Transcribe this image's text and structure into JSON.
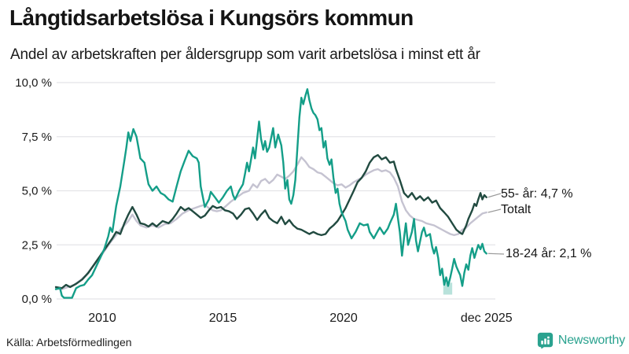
{
  "header": {
    "title": "Långtidsarbetslösa i Kungsörs kommun",
    "subtitle": "Andel av arbetskraften per åldersgrupp som varit arbetslösa i minst ett år"
  },
  "chart_data": {
    "type": "line",
    "title": "Långtidsarbetslösa i Kungsörs kommun",
    "subtitle": "Andel av arbetskraften per åldersgrupp som varit arbetslösa i minst ett år",
    "xlabel": "",
    "ylabel": "",
    "ylim": [
      0,
      10
    ],
    "xrange": [
      2008.08,
      2025.92
    ],
    "grid": true,
    "legend_position": "right-end-labels",
    "yticks": [
      {
        "label": "10,0 %",
        "value": 10
      },
      {
        "label": "7,5 %",
        "value": 7.5
      },
      {
        "label": "5,0 %",
        "value": 5
      },
      {
        "label": "2,5 %",
        "value": 2.5
      },
      {
        "label": "0,0 %",
        "value": 0
      }
    ],
    "xticks": [
      {
        "label": "2010",
        "year": 2010
      },
      {
        "label": "2015",
        "year": 2015
      },
      {
        "label": "2020",
        "year": 2020
      },
      {
        "label": "dec 2025",
        "year": 2025.92
      }
    ],
    "series": [
      {
        "name": "55- år",
        "end_label": "55- år: 4,7 %",
        "end_value": 4.7,
        "color": "#214a40",
        "x": [
          2008.08,
          2008.33,
          2008.5,
          2008.67,
          2008.92,
          2009.17,
          2009.42,
          2009.67,
          2009.92,
          2010.17,
          2010.42,
          2010.58,
          2010.75,
          2010.92,
          2011.08,
          2011.25,
          2011.42,
          2011.58,
          2011.75,
          2011.92,
          2012.08,
          2012.25,
          2012.5,
          2012.75,
          2012.92,
          2013.08,
          2013.25,
          2013.42,
          2013.58,
          2013.75,
          2013.92,
          2014.08,
          2014.25,
          2014.42,
          2014.58,
          2014.75,
          2014.92,
          2015.08,
          2015.25,
          2015.42,
          2015.58,
          2015.75,
          2015.92,
          2016.08,
          2016.25,
          2016.42,
          2016.58,
          2016.75,
          2016.92,
          2017.08,
          2017.25,
          2017.42,
          2017.58,
          2017.75,
          2017.92,
          2018.08,
          2018.25,
          2018.42,
          2018.58,
          2018.75,
          2018.92,
          2019.08,
          2019.25,
          2019.42,
          2019.58,
          2019.75,
          2019.92,
          2020.08,
          2020.25,
          2020.42,
          2020.58,
          2020.75,
          2020.92,
          2021.08,
          2021.25,
          2021.42,
          2021.58,
          2021.75,
          2021.92,
          2022.08,
          2022.17,
          2022.33,
          2022.5,
          2022.67,
          2022.83,
          2023.0,
          2023.17,
          2023.33,
          2023.5,
          2023.67,
          2023.83,
          2024.0,
          2024.17,
          2024.33,
          2024.5,
          2024.67,
          2024.83,
          2024.92,
          2025.08,
          2025.17,
          2025.33,
          2025.42,
          2025.5,
          2025.58,
          2025.67,
          2025.75,
          2025.83,
          2025.92
        ],
        "values": [
          0.55,
          0.5,
          0.65,
          0.55,
          0.7,
          0.9,
          1.2,
          1.6,
          2.0,
          2.4,
          2.8,
          3.1,
          3.0,
          3.5,
          3.9,
          4.25,
          3.9,
          3.5,
          3.45,
          3.35,
          3.5,
          3.35,
          3.6,
          3.5,
          3.7,
          3.95,
          4.25,
          4.1,
          4.2,
          4.05,
          3.9,
          3.75,
          3.85,
          4.1,
          4.3,
          4.2,
          4.25,
          4.1,
          4.05,
          3.95,
          3.7,
          3.9,
          4.15,
          4.2,
          3.95,
          3.65,
          3.9,
          4.1,
          3.75,
          3.6,
          3.5,
          3.8,
          3.45,
          3.65,
          3.4,
          3.25,
          3.2,
          3.1,
          3.0,
          3.1,
          3.0,
          2.95,
          3.0,
          3.25,
          3.4,
          3.6,
          3.9,
          4.2,
          4.6,
          5.0,
          5.4,
          5.6,
          5.9,
          6.3,
          6.55,
          6.65,
          6.45,
          6.55,
          6.3,
          6.35,
          6.0,
          5.5,
          4.9,
          4.7,
          4.9,
          4.6,
          4.75,
          4.55,
          4.7,
          4.45,
          4.55,
          4.2,
          4.0,
          3.8,
          3.5,
          3.2,
          3.05,
          3.0,
          3.4,
          3.7,
          4.1,
          4.4,
          4.3,
          4.6,
          4.9,
          4.6,
          4.8,
          4.7
        ]
      },
      {
        "name": "Totalt",
        "end_label": "Totalt",
        "end_value": 4.0,
        "color": "#c5c3d1",
        "x": [
          2008.08,
          2008.33,
          2008.58,
          2008.83,
          2009.08,
          2009.33,
          2009.58,
          2009.83,
          2010.08,
          2010.33,
          2010.58,
          2010.83,
          2011.08,
          2011.25,
          2011.42,
          2011.58,
          2011.83,
          2012.08,
          2012.33,
          2012.58,
          2012.83,
          2013.08,
          2013.33,
          2013.58,
          2013.83,
          2014.08,
          2014.25,
          2014.42,
          2014.58,
          2014.75,
          2014.92,
          2015.08,
          2015.33,
          2015.58,
          2015.83,
          2016.08,
          2016.25,
          2016.42,
          2016.58,
          2016.75,
          2016.92,
          2017.08,
          2017.25,
          2017.42,
          2017.58,
          2017.75,
          2017.92,
          2018.08,
          2018.25,
          2018.42,
          2018.58,
          2018.75,
          2018.92,
          2019.08,
          2019.25,
          2019.42,
          2019.58,
          2019.75,
          2019.92,
          2020.08,
          2020.25,
          2020.42,
          2020.58,
          2020.75,
          2020.92,
          2021.08,
          2021.25,
          2021.42,
          2021.58,
          2021.75,
          2021.92,
          2022.08,
          2022.25,
          2022.42,
          2022.58,
          2022.75,
          2022.92,
          2023.08,
          2023.25,
          2023.42,
          2023.58,
          2023.75,
          2023.92,
          2024.08,
          2024.25,
          2024.42,
          2024.58,
          2024.75,
          2024.92,
          2025.08,
          2025.25,
          2025.42,
          2025.58,
          2025.75,
          2025.92
        ],
        "values": [
          0.5,
          0.45,
          0.55,
          0.65,
          0.85,
          1.1,
          1.45,
          1.8,
          2.2,
          2.6,
          2.95,
          3.3,
          3.6,
          3.9,
          3.6,
          3.4,
          3.3,
          3.4,
          3.3,
          3.45,
          3.5,
          3.7,
          3.95,
          4.1,
          4.2,
          4.3,
          4.35,
          4.2,
          4.1,
          4.05,
          4.1,
          4.25,
          4.5,
          4.7,
          4.9,
          5.0,
          5.3,
          5.15,
          5.45,
          5.55,
          5.35,
          5.5,
          5.75,
          5.65,
          5.55,
          5.7,
          5.9,
          6.2,
          6.55,
          6.35,
          6.1,
          6.0,
          5.85,
          5.8,
          5.65,
          5.5,
          5.35,
          5.25,
          5.3,
          5.15,
          5.25,
          5.4,
          5.5,
          5.6,
          5.75,
          5.85,
          5.95,
          6.0,
          5.9,
          5.95,
          5.85,
          5.6,
          5.2,
          4.5,
          4.1,
          3.85,
          3.7,
          3.65,
          3.6,
          3.5,
          3.45,
          3.4,
          3.3,
          3.2,
          3.1,
          3.0,
          2.95,
          3.0,
          3.2,
          3.3,
          3.5,
          3.65,
          3.8,
          3.95,
          4.0
        ]
      },
      {
        "name": "18-24 år",
        "end_label": "18-24 år: 2,1 %",
        "end_value": 2.1,
        "color": "#149e88",
        "x": [
          2008.08,
          2008.25,
          2008.33,
          2008.42,
          2008.58,
          2008.75,
          2008.92,
          2009.08,
          2009.25,
          2009.42,
          2009.58,
          2009.75,
          2009.92,
          2010.08,
          2010.25,
          2010.33,
          2010.42,
          2010.58,
          2010.75,
          2010.92,
          2011.0,
          2011.08,
          2011.17,
          2011.29,
          2011.42,
          2011.5,
          2011.58,
          2011.75,
          2011.83,
          2011.92,
          2012.08,
          2012.25,
          2012.42,
          2012.58,
          2012.75,
          2012.92,
          2013.08,
          2013.25,
          2013.42,
          2013.58,
          2013.75,
          2013.92,
          2014.0,
          2014.08,
          2014.25,
          2014.42,
          2014.5,
          2014.67,
          2014.83,
          2015.0,
          2015.17,
          2015.33,
          2015.42,
          2015.5,
          2015.67,
          2015.83,
          2015.92,
          2016.0,
          2016.08,
          2016.25,
          2016.33,
          2016.42,
          2016.5,
          2016.58,
          2016.67,
          2016.75,
          2016.83,
          2016.92,
          2017.08,
          2017.17,
          2017.29,
          2017.42,
          2017.5,
          2017.58,
          2017.67,
          2017.75,
          2017.83,
          2017.92,
          2018.0,
          2018.08,
          2018.17,
          2018.25,
          2018.33,
          2018.42,
          2018.5,
          2018.58,
          2018.67,
          2018.75,
          2018.83,
          2018.92,
          2019.0,
          2019.08,
          2019.17,
          2019.25,
          2019.33,
          2019.42,
          2019.5,
          2019.58,
          2019.67,
          2019.75,
          2019.83,
          2019.92,
          2020.08,
          2020.17,
          2020.33,
          2020.5,
          2020.67,
          2020.83,
          2021.0,
          2021.08,
          2021.25,
          2021.42,
          2021.5,
          2021.67,
          2021.83,
          2021.92,
          2022.08,
          2022.17,
          2022.33,
          2022.42,
          2022.5,
          2022.58,
          2022.67,
          2022.83,
          2022.92,
          2023.0,
          2023.08,
          2023.25,
          2023.33,
          2023.42,
          2023.58,
          2023.67,
          2023.75,
          2023.83,
          2023.92,
          2024.0,
          2024.08,
          2024.17,
          2024.25,
          2024.33,
          2024.42,
          2024.5,
          2024.58,
          2024.67,
          2024.75,
          2024.83,
          2024.92,
          2025.0,
          2025.08,
          2025.17,
          2025.25,
          2025.33,
          2025.42,
          2025.5,
          2025.58,
          2025.67,
          2025.75,
          2025.83,
          2025.92
        ],
        "values": [
          0.45,
          0.5,
          0.15,
          0.05,
          0.05,
          0.05,
          0.5,
          0.6,
          0.65,
          0.9,
          1.1,
          1.5,
          1.9,
          2.3,
          2.9,
          3.3,
          3.1,
          4.3,
          5.2,
          6.4,
          7.0,
          7.7,
          7.3,
          7.85,
          7.5,
          7.0,
          6.5,
          6.3,
          5.8,
          5.3,
          5.0,
          5.2,
          4.9,
          4.8,
          4.6,
          4.5,
          5.2,
          5.9,
          6.4,
          6.85,
          6.6,
          6.5,
          6.3,
          5.2,
          4.25,
          4.6,
          4.95,
          4.7,
          4.45,
          4.7,
          5.0,
          5.2,
          4.8,
          4.6,
          5.0,
          5.3,
          5.8,
          6.3,
          5.9,
          7.0,
          6.5,
          7.4,
          8.2,
          7.4,
          6.9,
          7.3,
          6.8,
          7.0,
          7.9,
          7.0,
          7.6,
          7.1,
          6.3,
          5.1,
          5.5,
          4.6,
          4.4,
          4.8,
          5.5,
          6.9,
          8.4,
          9.3,
          9.0,
          9.4,
          9.7,
          9.2,
          8.8,
          8.6,
          8.5,
          8.3,
          7.8,
          7.9,
          7.0,
          7.3,
          6.5,
          6.2,
          6.45,
          5.6,
          4.9,
          5.1,
          4.4,
          4.0,
          3.6,
          3.2,
          2.8,
          3.1,
          3.5,
          3.4,
          3.45,
          3.1,
          2.8,
          3.15,
          3.3,
          3.0,
          3.25,
          3.5,
          3.9,
          4.4,
          3.1,
          2.0,
          2.8,
          3.5,
          2.5,
          3.1,
          3.7,
          2.7,
          2.2,
          3.1,
          3.3,
          2.9,
          3.0,
          2.4,
          2.1,
          2.4,
          1.9,
          1.1,
          1.4,
          0.65,
          1.0,
          0.6,
          1.0,
          1.4,
          1.85,
          1.5,
          1.3,
          1.1,
          0.6,
          1.2,
          1.6,
          1.35,
          2.0,
          2.35,
          1.9,
          2.2,
          2.5,
          2.3,
          2.55,
          2.2,
          2.1
        ]
      }
    ],
    "highlight_band": {
      "x0": 2024.13,
      "x1": 2024.5,
      "y0": 0.2,
      "y1": 0.75,
      "color": "#149e88",
      "opacity": 0.3
    }
  },
  "footer": {
    "source": "Källa: Arbetsförmedlingen",
    "brand": "Newsworthy"
  },
  "colors": {
    "accent_teal": "#149e88",
    "dark_green": "#214a40",
    "total_gray": "#c5c3d1",
    "gridline": "#e4e4e8",
    "brand_teal": "#2aa28f"
  }
}
